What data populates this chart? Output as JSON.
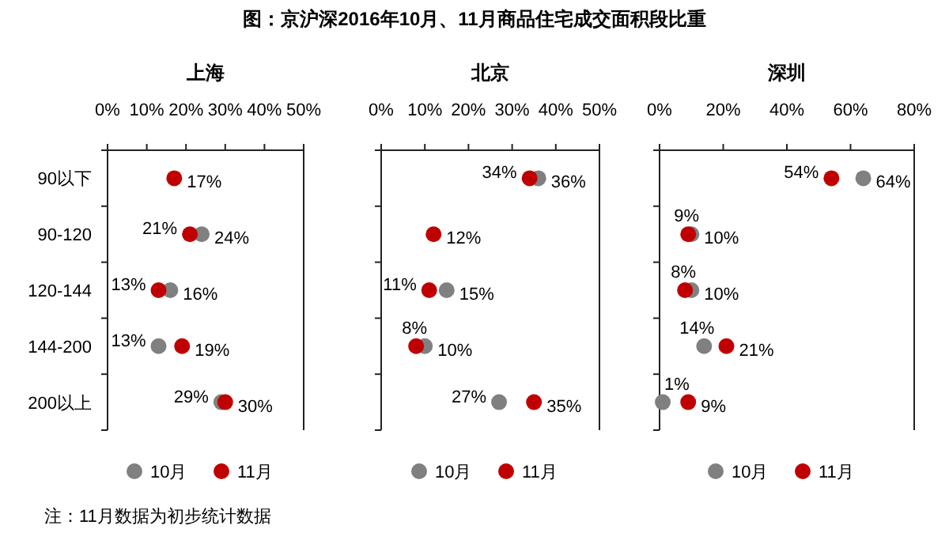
{
  "chart_data": [
    {
      "type": "scatter",
      "orientation": "horizontal",
      "title": "上海",
      "categories": [
        "90以下",
        "90-120",
        "120-144",
        "144-200",
        "200以上"
      ],
      "xlim": [
        0,
        50
      ],
      "xticks": [
        {
          "value": 0,
          "label": "0%"
        },
        {
          "value": 10,
          "label": "10%"
        },
        {
          "value": 20,
          "label": "20%"
        },
        {
          "value": 30,
          "label": "30%"
        },
        {
          "value": 40,
          "label": "40%"
        },
        {
          "value": 50,
          "label": "50%"
        }
      ],
      "legend": "bottom",
      "marker": "circle",
      "annotations": [
        "图：京沪深2016年10月、11月商品住宅成交面积段比重",
        "注：11月数据为初步统计数据"
      ],
      "series": [
        {
          "name": "10月",
          "color": "#808080",
          "values": [
            null,
            24,
            16,
            13,
            29
          ],
          "value_labels": [
            null,
            "24%",
            "16%",
            "13%",
            "29%"
          ]
        },
        {
          "name": "11月",
          "color": "#c00000",
          "values": [
            17,
            21,
            13,
            19,
            30
          ],
          "value_labels": [
            "17%",
            "21%",
            "13%",
            "19%",
            "30%"
          ]
        }
      ]
    },
    {
      "type": "scatter",
      "orientation": "horizontal",
      "title": "北京",
      "categories": [
        null,
        null,
        null,
        null,
        null
      ],
      "tick_labels": "x",
      "xlim": [
        0,
        50
      ],
      "xticks": [
        {
          "value": 0,
          "label": "0%"
        },
        {
          "value": 10,
          "label": "10%"
        },
        {
          "value": 20,
          "label": "20%"
        },
        {
          "value": 30,
          "label": "30%"
        },
        {
          "value": 40,
          "label": "40%"
        },
        {
          "value": 50,
          "label": "50%"
        }
      ],
      "legend": "bottom",
      "marker": "circle",
      "series": [
        {
          "name": "10月",
          "color": "#808080",
          "values": [
            36,
            null,
            15,
            10,
            27
          ],
          "value_labels": [
            "36%",
            null,
            "15%",
            "10%",
            "27%"
          ]
        },
        {
          "name": "11月",
          "color": "#c00000",
          "values": [
            34,
            12,
            11,
            8,
            35
          ],
          "value_labels": [
            "34%",
            "12%",
            "11%",
            "8%",
            "35%"
          ]
        }
      ]
    },
    {
      "type": "scatter",
      "orientation": "horizontal",
      "title": "深圳",
      "categories": [
        null,
        null,
        null,
        null,
        null
      ],
      "tick_labels": "x",
      "xlim": [
        0,
        80
      ],
      "xticks": [
        {
          "value": 0,
          "label": "0%"
        },
        {
          "value": 20,
          "label": "20%"
        },
        {
          "value": 40,
          "label": "40%"
        },
        {
          "value": 60,
          "label": "60%"
        },
        {
          "value": 80,
          "label": "80%"
        }
      ],
      "legend": "bottom",
      "marker": "circle",
      "series": [
        {
          "name": "10月",
          "color": "#808080",
          "values": [
            64,
            10,
            10,
            14,
            1
          ],
          "value_labels": [
            "64%",
            "10%",
            "10%",
            "14%",
            "1%"
          ]
        },
        {
          "name": "11月",
          "color": "#c00000",
          "values": [
            54,
            9,
            8,
            21,
            9
          ],
          "value_labels": [
            "54%",
            "9%",
            "8%",
            "21%",
            "9%"
          ]
        }
      ]
    }
  ]
}
